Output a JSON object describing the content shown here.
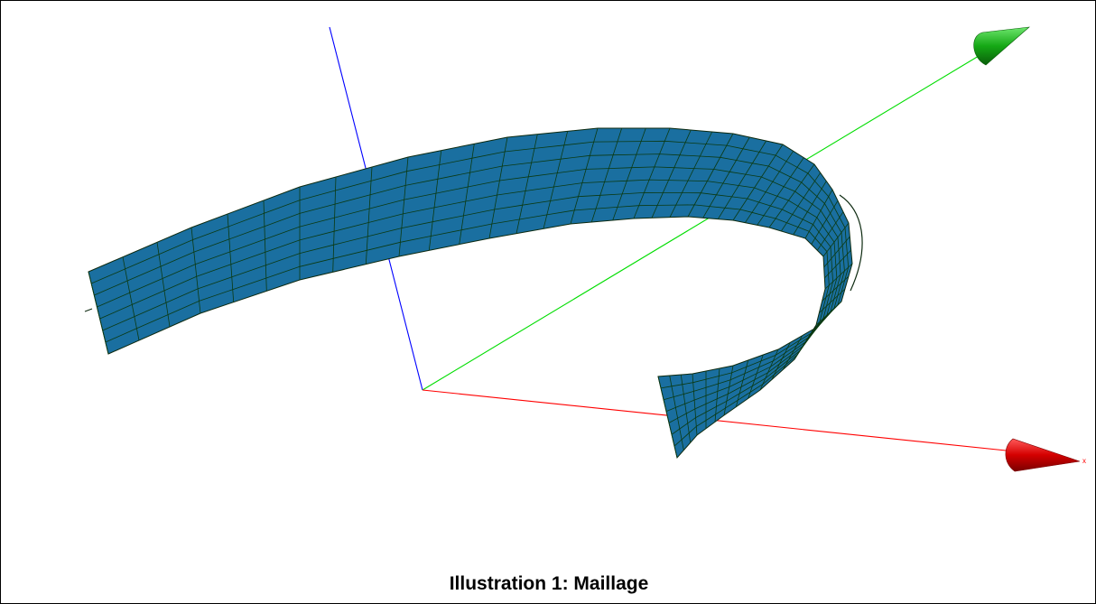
{
  "caption": "Illustration 1: Maillage",
  "axes": {
    "x_label": "x",
    "x_color": "#ff0000",
    "x_cone_color": "#cc0000",
    "y_color": "#00dd00",
    "y_cone_color": "#119911",
    "z_color": "#0000ff"
  },
  "mesh": {
    "surface_color": "#1a6fa0",
    "grid_color": "#0b3a12",
    "edge_color": "#0d2a10"
  },
  "icons": {
    "x_arrow": "cone-arrow-icon",
    "y_arrow": "cone-arrow-icon"
  }
}
